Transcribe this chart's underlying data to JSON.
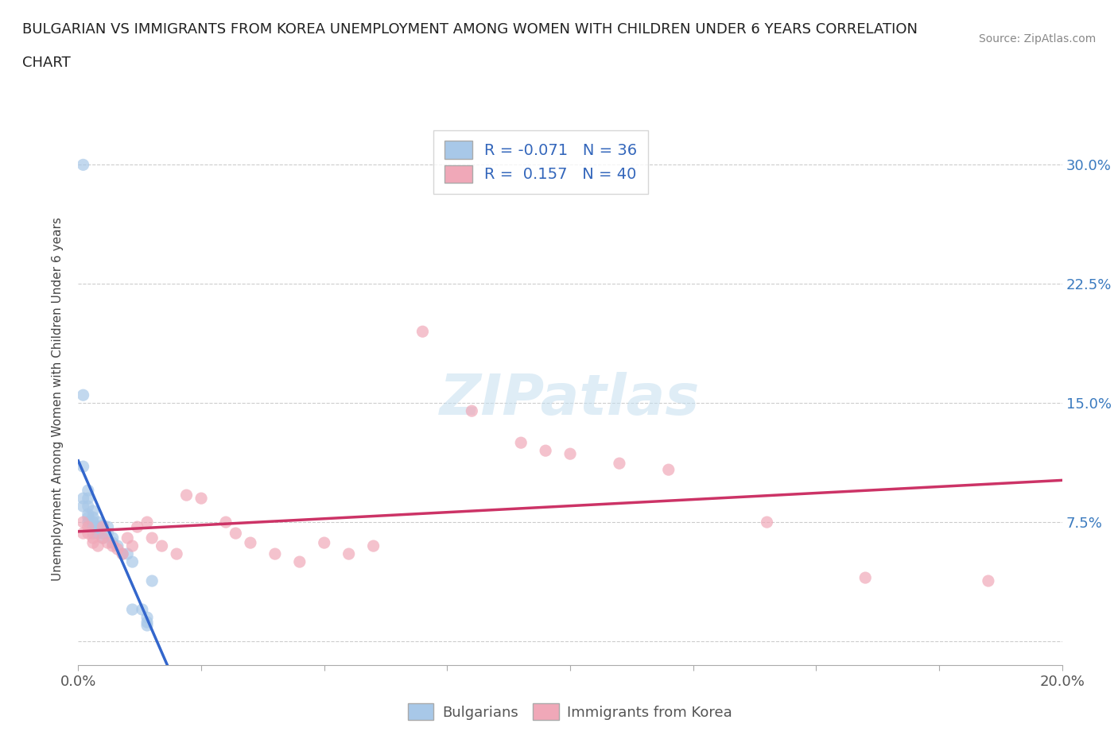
{
  "title_line1": "BULGARIAN VS IMMIGRANTS FROM KOREA UNEMPLOYMENT AMONG WOMEN WITH CHILDREN UNDER 6 YEARS CORRELATION",
  "title_line2": "CHART",
  "source": "Source: ZipAtlas.com",
  "ylabel": "Unemployment Among Women with Children Under 6 years",
  "xlim": [
    0.0,
    0.2
  ],
  "ylim": [
    -0.015,
    0.32
  ],
  "yticks": [
    0.0,
    0.075,
    0.15,
    0.225,
    0.3
  ],
  "ytick_labels_right": [
    "",
    "7.5%",
    "15.0%",
    "22.5%",
    "30.0%"
  ],
  "xtick_positions": [
    0.0,
    0.025,
    0.05,
    0.075,
    0.1,
    0.125,
    0.15,
    0.175,
    0.2
  ],
  "grid_color": "#cccccc",
  "grid_style": "--",
  "background_color": "#ffffff",
  "bulgarians_color": "#a8c8e8",
  "koreans_color": "#f0a8b8",
  "blue_line_color": "#3366cc",
  "pink_line_color": "#cc3366",
  "blue_line_style": "-",
  "blue_line_dashed_style": "--",
  "bulgarians_x": [
    0.001,
    0.001,
    0.001,
    0.001,
    0.001,
    0.002,
    0.002,
    0.002,
    0.002,
    0.002,
    0.002,
    0.003,
    0.003,
    0.003,
    0.003,
    0.003,
    0.004,
    0.004,
    0.004,
    0.005,
    0.005,
    0.005,
    0.006,
    0.006,
    0.007,
    0.007,
    0.008,
    0.009,
    0.01,
    0.011,
    0.011,
    0.013,
    0.014,
    0.014,
    0.014,
    0.015
  ],
  "bulgarians_y": [
    0.3,
    0.155,
    0.11,
    0.09,
    0.085,
    0.095,
    0.09,
    0.085,
    0.08,
    0.078,
    0.075,
    0.082,
    0.078,
    0.075,
    0.072,
    0.068,
    0.075,
    0.072,
    0.068,
    0.073,
    0.068,
    0.065,
    0.072,
    0.068,
    0.065,
    0.062,
    0.06,
    0.055,
    0.055,
    0.05,
    0.02,
    0.02,
    0.015,
    0.012,
    0.01,
    0.038
  ],
  "koreans_x": [
    0.001,
    0.001,
    0.002,
    0.002,
    0.003,
    0.003,
    0.004,
    0.005,
    0.005,
    0.006,
    0.007,
    0.008,
    0.009,
    0.01,
    0.011,
    0.012,
    0.014,
    0.015,
    0.017,
    0.02,
    0.022,
    0.025,
    0.03,
    0.032,
    0.035,
    0.04,
    0.045,
    0.05,
    0.055,
    0.06,
    0.07,
    0.08,
    0.09,
    0.095,
    0.1,
    0.11,
    0.12,
    0.14,
    0.16,
    0.185
  ],
  "koreans_y": [
    0.075,
    0.068,
    0.072,
    0.068,
    0.065,
    0.062,
    0.06,
    0.072,
    0.065,
    0.062,
    0.06,
    0.058,
    0.055,
    0.065,
    0.06,
    0.072,
    0.075,
    0.065,
    0.06,
    0.055,
    0.092,
    0.09,
    0.075,
    0.068,
    0.062,
    0.055,
    0.05,
    0.062,
    0.055,
    0.06,
    0.195,
    0.145,
    0.125,
    0.12,
    0.118,
    0.112,
    0.108,
    0.075,
    0.04,
    0.038
  ]
}
